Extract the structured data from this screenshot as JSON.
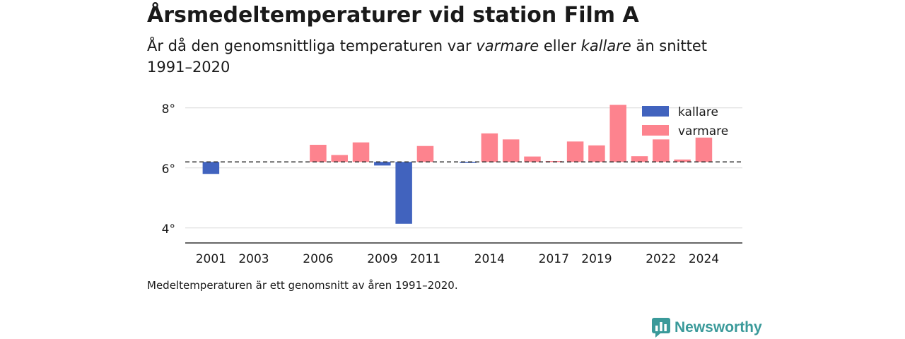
{
  "header": {
    "title": "Årsmedeltemperaturer vid station Film A",
    "subtitle_parts": [
      {
        "text": "År då den genomsnittliga temperaturen var ",
        "italic": false
      },
      {
        "text": "varmare",
        "italic": true
      },
      {
        "text": " eller ",
        "italic": false
      },
      {
        "text": "kallare",
        "italic": true
      },
      {
        "text": " än snittet 1991–2020",
        "italic": false
      }
    ]
  },
  "footnote": "Medeltemperaturen är ett genomsnitt av åren 1991–2020.",
  "brand": {
    "name": "Newsworthy",
    "icon": "newsworthy-logo-icon",
    "color": "#3a9a9a"
  },
  "chart_data": {
    "type": "bar",
    "baseline": 6.2,
    "baseline_style": "dashed",
    "ylim": [
      3.5,
      8.3
    ],
    "yticks": [
      4,
      6,
      8
    ],
    "ytick_labels": [
      "4°",
      "6°",
      "8°"
    ],
    "xlim": [
      1999.8,
      2025.8
    ],
    "xticks": [
      2001,
      2003,
      2006,
      2009,
      2011,
      2014,
      2017,
      2019,
      2022,
      2024
    ],
    "xtick_labels": [
      "2001",
      "2003",
      "2006",
      "2009",
      "2011",
      "2014",
      "2017",
      "2019",
      "2022",
      "2024"
    ],
    "grid": true,
    "legend_position": "top-right",
    "legend": [
      {
        "label": "kallare",
        "color": "#4163be"
      },
      {
        "label": "varmare",
        "color": "#fd838e"
      }
    ],
    "colors": {
      "kallare": "#4163be",
      "varmare": "#fd838e"
    },
    "bars": [
      {
        "year": 2001,
        "value": 5.8,
        "category": "kallare"
      },
      {
        "year": 2006,
        "value": 6.77,
        "category": "varmare"
      },
      {
        "year": 2007,
        "value": 6.43,
        "category": "varmare"
      },
      {
        "year": 2008,
        "value": 6.85,
        "category": "varmare"
      },
      {
        "year": 2009,
        "value": 6.08,
        "category": "kallare"
      },
      {
        "year": 2010,
        "value": 4.14,
        "category": "kallare"
      },
      {
        "year": 2011,
        "value": 6.73,
        "category": "varmare"
      },
      {
        "year": 2013,
        "value": 6.18,
        "category": "kallare"
      },
      {
        "year": 2014,
        "value": 7.15,
        "category": "varmare"
      },
      {
        "year": 2015,
        "value": 6.95,
        "category": "varmare"
      },
      {
        "year": 2016,
        "value": 6.38,
        "category": "varmare"
      },
      {
        "year": 2017,
        "value": 6.23,
        "category": "varmare"
      },
      {
        "year": 2018,
        "value": 6.88,
        "category": "varmare"
      },
      {
        "year": 2019,
        "value": 6.75,
        "category": "varmare"
      },
      {
        "year": 2020,
        "value": 8.1,
        "category": "varmare"
      },
      {
        "year": 2021,
        "value": 6.39,
        "category": "varmare"
      },
      {
        "year": 2022,
        "value": 6.95,
        "category": "varmare"
      },
      {
        "year": 2023,
        "value": 6.28,
        "category": "varmare"
      },
      {
        "year": 2024,
        "value": 7.01,
        "category": "varmare"
      }
    ]
  }
}
